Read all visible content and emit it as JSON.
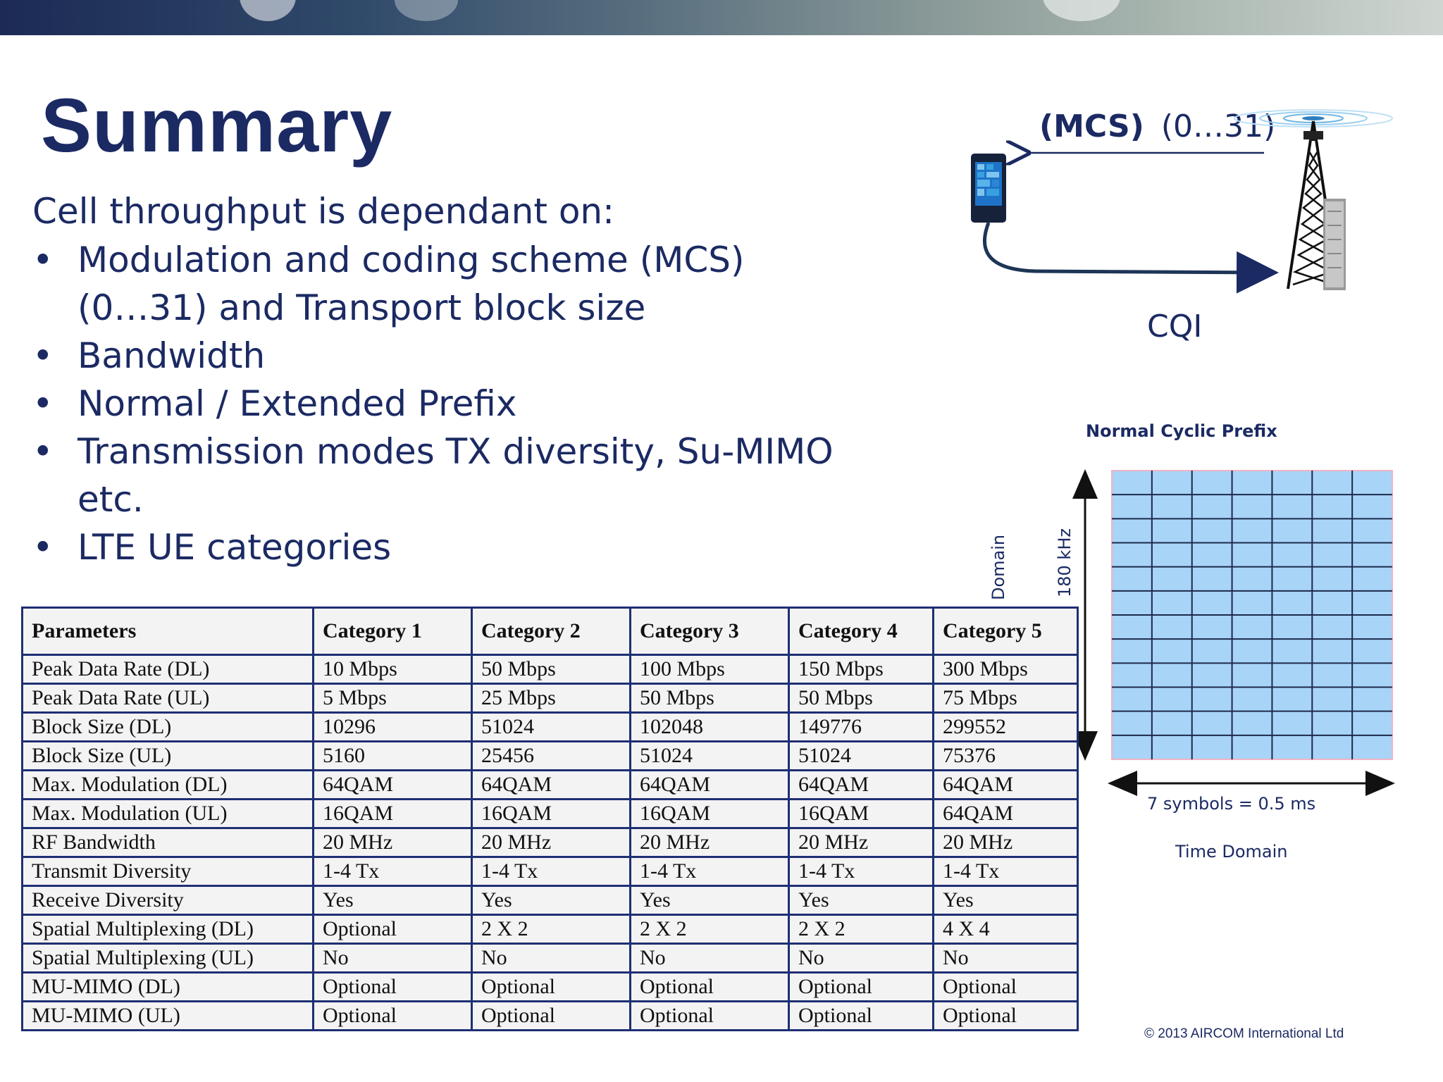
{
  "slide": {
    "title": "Summary",
    "lead": "Cell throughput is dependant on:",
    "bullet_glyph": "•",
    "bullets": [
      "Modulation and coding scheme (MCS) (0…31) and Transport block size",
      "Bandwidth",
      "Normal / Extended Prefix",
      "Transmission modes TX diversity, Su-MIMO etc.",
      "LTE UE categories"
    ],
    "copyright": "© 2013 AIRCOM International Ltd"
  },
  "link_diagram": {
    "mcs_bold": "(MCS)",
    "mcs_range": "(0…31)",
    "cqi": "CQI"
  },
  "resource_grid": {
    "title": "Normal Cyclic Prefix",
    "freq_label": "180 kHz",
    "domain_label": "Domain",
    "symbols_label": "7 symbols = 0.5 ms",
    "time_label": "Time Domain",
    "columns": 7,
    "rows": 12
  },
  "table": {
    "headers": [
      "Parameters",
      "Category 1",
      "Category 2",
      "Category 3",
      "Category 4",
      "Category 5"
    ],
    "rows": [
      [
        "Peak Data Rate (DL)",
        "10 Mbps",
        "50 Mbps",
        "100 Mbps",
        "150 Mbps",
        "300 Mbps"
      ],
      [
        "Peak Data Rate (UL)",
        "5 Mbps",
        "25 Mbps",
        "50 Mbps",
        "50 Mbps",
        "75 Mbps"
      ],
      [
        "Block Size (DL)",
        "10296",
        "51024",
        "102048",
        "149776",
        "299552"
      ],
      [
        "Block Size (UL)",
        "5160",
        "25456",
        "51024",
        "51024",
        "75376"
      ],
      [
        "Max. Modulation (DL)",
        "64QAM",
        "64QAM",
        "64QAM",
        "64QAM",
        "64QAM"
      ],
      [
        "Max. Modulation (UL)",
        "16QAM",
        "16QAM",
        "16QAM",
        "16QAM",
        "64QAM"
      ],
      [
        "RF Bandwidth",
        "20 MHz",
        "20 MHz",
        "20 MHz",
        "20 MHz",
        "20 MHz"
      ],
      [
        "Transmit Diversity",
        "1-4 Tx",
        "1-4 Tx",
        "1-4 Tx",
        "1-4 Tx",
        "1-4 Tx"
      ],
      [
        "Receive Diversity",
        "Yes",
        "Yes",
        "Yes",
        "Yes",
        "Yes"
      ],
      [
        "Spatial Multiplexing  (DL)",
        "Optional",
        "2 X 2",
        "2 X 2",
        "2 X 2",
        "4 X 4"
      ],
      [
        "Spatial Multiplexing  (UL)",
        "No",
        "No",
        "No",
        "No",
        "No"
      ],
      [
        "MU-MIMO (DL)",
        "Optional",
        "Optional",
        "Optional",
        "Optional",
        "Optional"
      ],
      [
        "MU-MIMO (UL)",
        "Optional",
        "Optional",
        "Optional",
        "Optional",
        "Optional"
      ]
    ]
  },
  "colors": {
    "title_navy": "#1b2a63",
    "grid_fill": "#a8d4f7",
    "grid_line": "#1e2a4a",
    "table_border": "#1e2f73"
  }
}
